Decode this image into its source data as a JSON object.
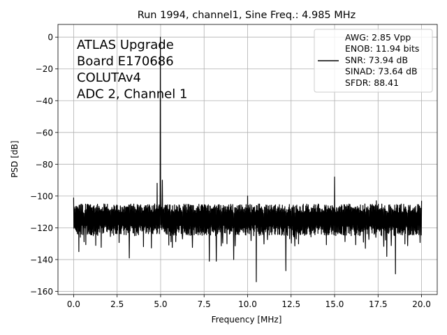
{
  "chart_data": {
    "type": "line",
    "title": "Run 1994, channel1, Sine Freq.: 4.985 MHz",
    "xlabel": "Frequency [MHz]",
    "ylabel": "PSD [dB]",
    "xlim": [
      -0.9,
      20.9
    ],
    "ylim": [
      -162,
      8
    ],
    "xticks": [
      0,
      2.5,
      5,
      7.5,
      10,
      12.5,
      15,
      17.5,
      20
    ],
    "xtick_labels": [
      "0.0",
      "2.5",
      "5.0",
      "7.5",
      "10.0",
      "12.5",
      "15.0",
      "17.5",
      "20.0"
    ],
    "yticks": [
      0,
      -20,
      -40,
      -60,
      -80,
      -100,
      -120,
      -140,
      -160
    ],
    "ytick_labels": [
      "0",
      "−20",
      "−40",
      "−60",
      "−80",
      "−100",
      "−120",
      "−140",
      "−160"
    ],
    "grid": true,
    "annotation_lines": [
      "ATLAS Upgrade",
      " Board E170686",
      "COLUTAv4",
      "ADC 2, Channel 1"
    ],
    "legend": {
      "location": "upper-right",
      "lines": [
        "AWG: 2.85 Vpp",
        "ENOB: 11.94 bits",
        "SNR: 73.94 dB",
        "SINAD: 73.64 dB",
        "SFDR: 88.41"
      ]
    },
    "series": [
      {
        "name": "PSD",
        "color": "#000000",
        "noise_floor_band": [
          -125,
          -105
        ],
        "peaks": [
          {
            "x": 0.0,
            "y": -101
          },
          {
            "x": 4.985,
            "y": 0
          },
          {
            "x": 4.8,
            "y": -92
          },
          {
            "x": 5.1,
            "y": -90
          },
          {
            "x": 10.0,
            "y": -100
          },
          {
            "x": 15.0,
            "y": -88
          },
          {
            "x": 17.4,
            "y": -103
          },
          {
            "x": 20.0,
            "y": -103
          }
        ],
        "dips": [
          {
            "x": 0.3,
            "y": -135
          },
          {
            "x": 3.2,
            "y": -139
          },
          {
            "x": 7.8,
            "y": -141
          },
          {
            "x": 8.2,
            "y": -141
          },
          {
            "x": 9.2,
            "y": -140
          },
          {
            "x": 10.5,
            "y": -154
          },
          {
            "x": 12.2,
            "y": -147
          },
          {
            "x": 18.0,
            "y": -138
          },
          {
            "x": 18.5,
            "y": -149
          }
        ]
      }
    ]
  }
}
